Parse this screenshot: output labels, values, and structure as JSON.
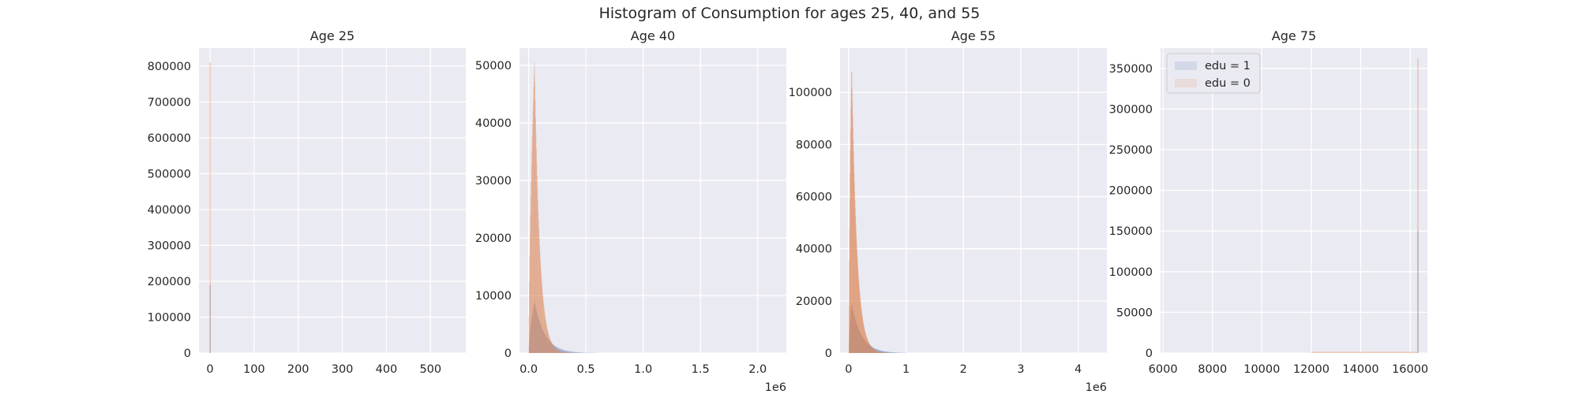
{
  "figure": {
    "suptitle": "Histogram of Consumption for ages 25, 40, and 55"
  },
  "colors": {
    "background": "#EAEAF2",
    "grid": "#FFFFFF",
    "edu1": "#4C72B0",
    "edu0": "#DD8452",
    "overlap": "#9B9366"
  },
  "chart_data": [
    {
      "type": "histogram",
      "title": "Age 25",
      "xlim": [
        -25,
        580
      ],
      "ylim": [
        0,
        850000
      ],
      "xticks": [
        0,
        100,
        200,
        300,
        400,
        500
      ],
      "xticklabels": [
        "0",
        "100",
        "200",
        "300",
        "400",
        "500"
      ],
      "yticks": [
        0,
        100000,
        200000,
        300000,
        400000,
        500000,
        600000,
        700000,
        800000
      ],
      "yticklabels": [
        "0",
        "100000",
        "200000",
        "300000",
        "400000",
        "500000",
        "600000",
        "700000",
        "800000"
      ],
      "offset_label": "",
      "grid": true,
      "series": [
        {
          "name": "edu = 1",
          "bins": [
            [
              -1,
              2,
              190000
            ]
          ]
        },
        {
          "name": "edu = 0",
          "bins": [
            [
              -1,
              2,
              810000
            ]
          ]
        }
      ]
    },
    {
      "type": "histogram",
      "title": "Age 40",
      "xlim": [
        -0.08,
        2.25
      ],
      "ylim": [
        0,
        53000
      ],
      "xticks": [
        0.0,
        0.5,
        1.0,
        1.5,
        2.0
      ],
      "xticklabels": [
        "0.0",
        "0.5",
        "1.0",
        "1.5",
        "2.0"
      ],
      "yticks": [
        0,
        10000,
        20000,
        30000,
        40000,
        50000
      ],
      "yticklabels": [
        "0",
        "10000",
        "20000",
        "30000",
        "40000",
        "50000"
      ],
      "offset_label": "1e6",
      "grid": true,
      "series": [
        {
          "name": "edu = 1",
          "shape": "skewed",
          "peak_x": 0.05,
          "peak_y": 9000,
          "x_start": 0.0,
          "tail_scale": 0.09,
          "x_end": 0.6
        },
        {
          "name": "edu = 0",
          "shape": "skewed",
          "peak_x": 0.05,
          "peak_y": 50500,
          "x_start": 0.0,
          "tail_scale": 0.045,
          "x_end": 0.45
        }
      ]
    },
    {
      "type": "histogram",
      "title": "Age 55",
      "xlim": [
        -0.15,
        4.5
      ],
      "ylim": [
        0,
        117000
      ],
      "xticks": [
        0,
        1,
        2,
        3,
        4
      ],
      "xticklabels": [
        "0",
        "1",
        "2",
        "3",
        "4"
      ],
      "yticks": [
        0,
        20000,
        40000,
        60000,
        80000,
        100000
      ],
      "yticklabels": [
        "0",
        "20000",
        "40000",
        "60000",
        "80000",
        "100000"
      ],
      "offset_label": "1e6",
      "grid": true,
      "series": [
        {
          "name": "edu = 1",
          "shape": "skewed",
          "peak_x": 0.05,
          "peak_y": 19000,
          "x_start": 0.0,
          "tail_scale": 0.17,
          "x_end": 1.0
        },
        {
          "name": "edu = 0",
          "shape": "skewed",
          "peak_x": 0.05,
          "peak_y": 111000,
          "x_start": 0.0,
          "tail_scale": 0.09,
          "x_end": 0.7
        }
      ]
    },
    {
      "type": "histogram",
      "title": "Age 75",
      "xlim": [
        5900,
        16700
      ],
      "ylim": [
        0,
        375000
      ],
      "xticks": [
        6000,
        8000,
        10000,
        12000,
        14000,
        16000
      ],
      "xticklabels": [
        "6000",
        "8000",
        "10000",
        "12000",
        "14000",
        "16000"
      ],
      "yticks": [
        0,
        50000,
        100000,
        150000,
        200000,
        250000,
        300000,
        350000
      ],
      "yticklabels": [
        "0",
        "50000",
        "100000",
        "150000",
        "200000",
        "250000",
        "300000",
        "350000"
      ],
      "offset_label": "",
      "grid": true,
      "legend": {
        "location": "upper left",
        "entries": [
          "edu = 1",
          "edu = 0"
        ]
      },
      "series": [
        {
          "name": "edu = 1",
          "bins": [
            [
              16290,
              16330,
              150000
            ]
          ]
        },
        {
          "name": "edu = 0",
          "bins": [
            [
              12000,
              16290,
              1500
            ],
            [
              16290,
              16340,
              362000
            ]
          ]
        }
      ]
    }
  ]
}
